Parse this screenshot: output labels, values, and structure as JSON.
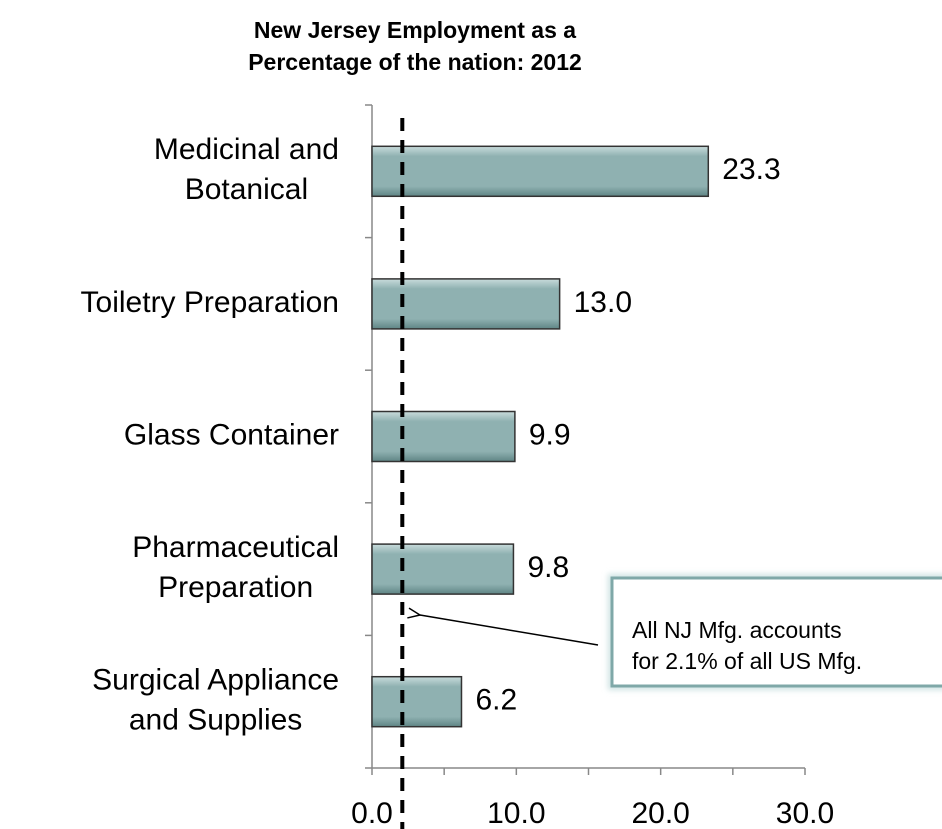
{
  "chart_data": {
    "type": "barh",
    "title": [
      "New Jersey Employment as a",
      "Percentage of the nation:  2012"
    ],
    "categories": [
      [
        "Medicinal and",
        "Botanical"
      ],
      [
        "Toiletry Preparation"
      ],
      [
        "Glass Container"
      ],
      [
        "Pharmaceutical",
        "Preparation"
      ],
      [
        "Surgical Appliance",
        "and Supplies"
      ]
    ],
    "values": [
      23.3,
      13.0,
      9.9,
      9.8,
      6.2
    ],
    "value_labels": [
      "23.3",
      "13.0",
      "9.9",
      "9.8",
      "6.2"
    ],
    "color": "#8fb1b1",
    "xlim": [
      0,
      30
    ],
    "xticks": [
      {
        "value": 0,
        "label": "0.0"
      },
      {
        "value": 10,
        "label": "10.0"
      },
      {
        "value": 20,
        "label": "20.0"
      },
      {
        "value": 30,
        "label": "30.0"
      }
    ],
    "xminor_ticks": [
      5,
      15,
      25
    ],
    "reference_line": 2.1,
    "annotation": [
      "All NJ Mfg. accounts",
      "for 2.1% of all US Mfg."
    ]
  }
}
